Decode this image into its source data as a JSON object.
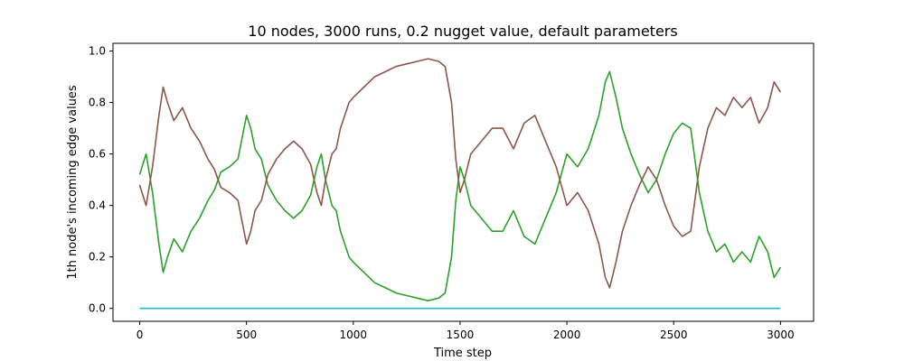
{
  "chart_data": {
    "type": "line",
    "title": "10 nodes, 3000 runs, 0.2 nugget value, default parameters",
    "xlabel": "Time step",
    "ylabel": "1th node's incoming edge values",
    "xlim": [
      -125,
      3155
    ],
    "ylim": [
      -0.05,
      1.03
    ],
    "xticks": [
      0,
      500,
      1000,
      1500,
      2000,
      2500,
      3000
    ],
    "yticks": [
      0.0,
      0.2,
      0.4,
      0.6,
      0.8,
      1.0
    ],
    "ytick_labels": [
      "0.0",
      "0.2",
      "0.4",
      "0.6",
      "0.8",
      "1.0"
    ],
    "grid": false,
    "series": [
      {
        "color": "#2ca02c",
        "x": [
          0,
          30,
          60,
          90,
          110,
          130,
          160,
          200,
          240,
          280,
          320,
          350,
          380,
          420,
          460,
          500,
          520,
          540,
          570,
          600,
          640,
          680,
          720,
          760,
          800,
          830,
          850,
          870,
          900,
          920,
          940,
          960,
          980,
          1000,
          1050,
          1100,
          1150,
          1200,
          1250,
          1300,
          1350,
          1400,
          1430,
          1460,
          1480,
          1500,
          1520,
          1550,
          1600,
          1650,
          1700,
          1750,
          1800,
          1850,
          1900,
          1950,
          2000,
          2050,
          2100,
          2150,
          2180,
          2200,
          2230,
          2260,
          2300,
          2340,
          2380,
          2420,
          2460,
          2500,
          2540,
          2580,
          2620,
          2660,
          2700,
          2740,
          2780,
          2820,
          2860,
          2900,
          2940,
          2970,
          3000
        ],
        "y": [
          0.52,
          0.6,
          0.45,
          0.25,
          0.14,
          0.2,
          0.27,
          0.22,
          0.3,
          0.35,
          0.42,
          0.46,
          0.53,
          0.55,
          0.58,
          0.75,
          0.7,
          0.62,
          0.58,
          0.48,
          0.42,
          0.38,
          0.35,
          0.38,
          0.44,
          0.55,
          0.6,
          0.5,
          0.4,
          0.38,
          0.3,
          0.25,
          0.2,
          0.18,
          0.14,
          0.1,
          0.08,
          0.06,
          0.05,
          0.04,
          0.03,
          0.04,
          0.06,
          0.2,
          0.42,
          0.55,
          0.5,
          0.4,
          0.35,
          0.3,
          0.3,
          0.38,
          0.28,
          0.25,
          0.35,
          0.45,
          0.6,
          0.55,
          0.62,
          0.75,
          0.88,
          0.92,
          0.82,
          0.7,
          0.6,
          0.52,
          0.45,
          0.5,
          0.6,
          0.68,
          0.72,
          0.7,
          0.45,
          0.3,
          0.22,
          0.25,
          0.18,
          0.22,
          0.18,
          0.28,
          0.22,
          0.12,
          0.16
        ]
      },
      {
        "color": "#8c564b",
        "x": [
          0,
          30,
          60,
          90,
          110,
          130,
          160,
          200,
          240,
          280,
          320,
          350,
          380,
          420,
          460,
          500,
          520,
          540,
          570,
          600,
          640,
          680,
          720,
          760,
          800,
          830,
          850,
          870,
          900,
          920,
          940,
          960,
          980,
          1000,
          1050,
          1100,
          1150,
          1200,
          1250,
          1300,
          1350,
          1400,
          1430,
          1460,
          1480,
          1500,
          1520,
          1550,
          1600,
          1650,
          1700,
          1750,
          1800,
          1850,
          1900,
          1950,
          2000,
          2050,
          2100,
          2150,
          2180,
          2200,
          2230,
          2260,
          2300,
          2340,
          2380,
          2420,
          2460,
          2500,
          2540,
          2580,
          2620,
          2660,
          2700,
          2740,
          2780,
          2820,
          2860,
          2900,
          2940,
          2970,
          3000
        ],
        "y": [
          0.48,
          0.4,
          0.55,
          0.75,
          0.86,
          0.8,
          0.73,
          0.78,
          0.7,
          0.65,
          0.58,
          0.54,
          0.47,
          0.45,
          0.42,
          0.25,
          0.3,
          0.38,
          0.42,
          0.52,
          0.58,
          0.62,
          0.65,
          0.62,
          0.56,
          0.45,
          0.4,
          0.5,
          0.6,
          0.62,
          0.7,
          0.75,
          0.8,
          0.82,
          0.86,
          0.9,
          0.92,
          0.94,
          0.95,
          0.96,
          0.97,
          0.96,
          0.94,
          0.8,
          0.58,
          0.45,
          0.5,
          0.6,
          0.65,
          0.7,
          0.7,
          0.62,
          0.72,
          0.75,
          0.65,
          0.55,
          0.4,
          0.45,
          0.38,
          0.25,
          0.12,
          0.08,
          0.18,
          0.3,
          0.4,
          0.48,
          0.55,
          0.5,
          0.4,
          0.32,
          0.28,
          0.3,
          0.55,
          0.7,
          0.78,
          0.75,
          0.82,
          0.78,
          0.82,
          0.72,
          0.78,
          0.88,
          0.84
        ]
      },
      {
        "color": "#17becf",
        "x": [
          0,
          3000
        ],
        "y": [
          0.0,
          0.0
        ]
      }
    ]
  }
}
